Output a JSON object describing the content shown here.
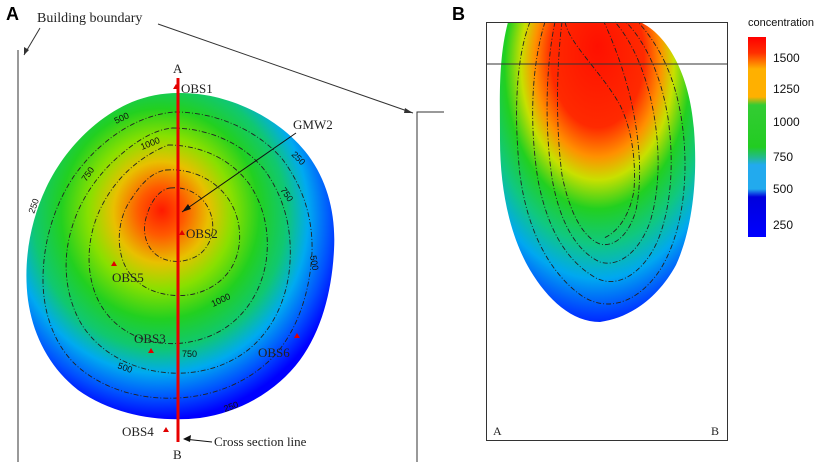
{
  "panel_a": {
    "letter": "A",
    "building_boundary_label": "Building boundary",
    "gmw2_label": "GMW2",
    "cross_section_label": "Cross section line",
    "section_start": "A",
    "section_end": "B",
    "observation_wells": [
      {
        "id": "obs1",
        "label": "OBS1"
      },
      {
        "id": "obs2",
        "label": "OBS2"
      },
      {
        "id": "obs3",
        "label": "OBS3"
      },
      {
        "id": "obs4",
        "label": "OBS4"
      },
      {
        "id": "obs5",
        "label": "OBS5"
      },
      {
        "id": "obs6",
        "label": "OBS6"
      }
    ],
    "contour_labels": [
      "250",
      "500",
      "1000",
      "750",
      "250",
      "750",
      "500",
      "1000",
      "750",
      "500",
      "250"
    ]
  },
  "panel_b": {
    "letter": "B",
    "corner_left": "A",
    "corner_right": "B"
  },
  "legend": {
    "title": "concentration",
    "ticks": [
      "1500",
      "1250",
      "1000",
      "750",
      "500",
      "250"
    ],
    "colors": [
      "#ff0000",
      "#ffb000",
      "#22cc22",
      "#33cc66",
      "#22aaee",
      "#0000dd",
      "#0000ff"
    ]
  }
}
